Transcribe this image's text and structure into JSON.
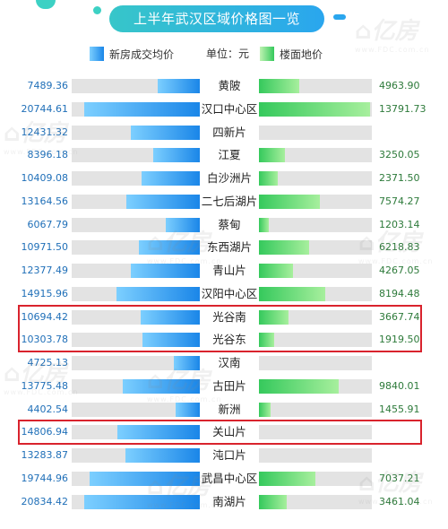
{
  "title": "上半年武汉区域价格图一览",
  "legend": {
    "left_label": "新房成交均价",
    "unit": "单位：元",
    "right_label": "楼面地价"
  },
  "colors": {
    "left_bar": "#1a86e8",
    "right_bar": "#35c95c",
    "track": "#e3e3e3",
    "highlight": "#d9232d"
  },
  "watermark": {
    "brand": "亿房",
    "url": "www.FDC.com.cn"
  },
  "chart_data": {
    "type": "bar",
    "layout": "butterfly",
    "title": "上半年武汉区域价格图一览",
    "unit": "元",
    "categories": [
      "黄陂",
      "汉口中心区",
      "四新片",
      "江夏",
      "白沙洲片",
      "二七后湖片",
      "蔡甸",
      "东西湖片",
      "青山片",
      "汉阳中心区",
      "光谷南",
      "光谷东",
      "汉南",
      "古田片",
      "新洲",
      "关山片",
      "沌口片",
      "武昌中心区",
      "南湖片"
    ],
    "series": [
      {
        "name": "新房成交均价",
        "values": [
          7489.36,
          20744.61,
          12431.32,
          8396.18,
          10409.08,
          13164.56,
          6067.79,
          10971.5,
          12377.49,
          14915.96,
          10694.42,
          10303.78,
          4725.13,
          13775.48,
          4402.54,
          14806.94,
          13283.87,
          19744.96,
          20834.42
        ],
        "labels": [
          "7489.36",
          "20744.61",
          "12431.32",
          "8396.18",
          "10409.08",
          "13164.56",
          "6067.79",
          "10971.50",
          "12377.49",
          "14915.96",
          "10694.42",
          "10303.78",
          "4725.13",
          "13775.48",
          "4402.54",
          "14806.94",
          "13283.87",
          "19744.96",
          "20834.42"
        ]
      },
      {
        "name": "楼面地价",
        "values": [
          4963.9,
          13791.73,
          null,
          3250.05,
          2371.5,
          7574.27,
          1203.14,
          6218.83,
          4267.05,
          8194.48,
          3667.74,
          1919.5,
          null,
          9840.01,
          1455.91,
          null,
          null,
          7037.21,
          3461.04
        ],
        "labels": [
          "4963.90",
          "13791.73",
          "",
          "3250.05",
          "2371.50",
          "7574.27",
          "1203.14",
          "6218.83",
          "4267.05",
          "8194.48",
          "3667.74",
          "1919.50",
          "",
          "9840.01",
          "1455.91",
          "",
          "",
          "7037.21",
          "3461.04"
        ]
      }
    ],
    "highlighted": [
      "光谷南",
      "光谷东",
      "关山片"
    ],
    "left_axis_max": 23000,
    "right_axis_max": 14000
  }
}
